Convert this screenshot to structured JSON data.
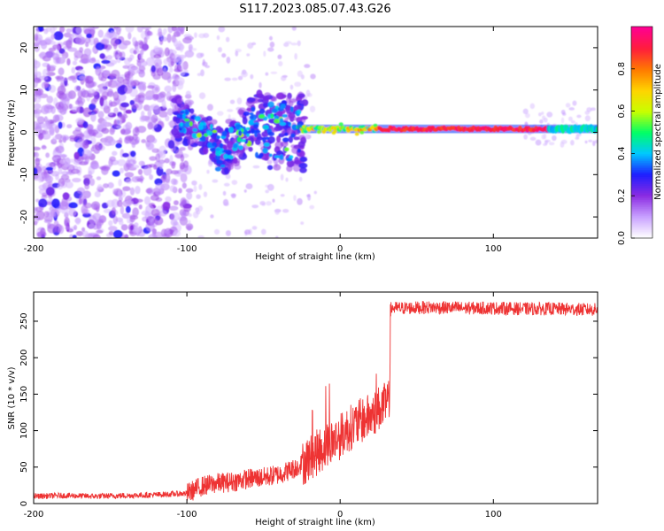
{
  "title": "S117.2023.085.07.43.G26",
  "chart_data": [
    {
      "type": "heatmap",
      "title": "S117.2023.085.07.43.G26",
      "xlabel": "Height of straight line (km)",
      "ylabel": "Frequency (Hz)",
      "xlim": [
        -200,
        168
      ],
      "ylim": [
        -25,
        25
      ],
      "x_ticks": [
        -200,
        -100,
        0,
        100
      ],
      "y_ticks": [
        20,
        10,
        0,
        -10,
        -20
      ],
      "grid": false,
      "colorbar": {
        "label": "Normalized spectral amplitude",
        "range": [
          0,
          1
        ],
        "ticks": [
          "0.0",
          "0.2",
          "0.4",
          "0.6",
          "0.8"
        ],
        "colormap": [
          "#ffffff",
          "#c8a0ff",
          "#8a2be2",
          "#1e1eff",
          "#00c8ff",
          "#00ff66",
          "#c8ff00",
          "#ffd400",
          "#ff7a00",
          "#ff1e3c",
          "#ff0090"
        ]
      },
      "regions": [
        {
          "name": "diffuse noise",
          "x": [
            -200,
            -100
          ],
          "freq": [
            -25,
            25
          ],
          "amplitude": 0.15
        },
        {
          "name": "transition",
          "x": [
            -100,
            -25
          ],
          "freq": [
            -15,
            10
          ],
          "amplitude": 0.45
        },
        {
          "name": "coherent line",
          "x": [
            -25,
            168
          ],
          "freq": [
            0,
            2
          ],
          "amplitude": 0.95
        }
      ]
    },
    {
      "type": "line",
      "xlabel": "Height of straight line (km)",
      "ylabel": "SNR (10 * v/v)",
      "xlim": [
        -200,
        168
      ],
      "ylim": [
        0,
        290
      ],
      "x_ticks": [
        -200,
        -100,
        0,
        100
      ],
      "y_ticks": [
        0,
        50,
        100,
        150,
        200,
        250
      ],
      "grid": false,
      "color": "#ee3333",
      "x": [
        -200,
        -180,
        -160,
        -140,
        -120,
        -100,
        -90,
        -80,
        -70,
        -60,
        -50,
        -40,
        -30,
        -25,
        -20,
        -15,
        -10,
        -5,
        0,
        5,
        10,
        15,
        20,
        25,
        30,
        32,
        33,
        40,
        60,
        80,
        100,
        120,
        140,
        160,
        168
      ],
      "y": [
        10,
        11,
        10,
        11,
        12,
        14,
        24,
        28,
        30,
        34,
        36,
        40,
        48,
        55,
        62,
        70,
        78,
        85,
        92,
        102,
        108,
        115,
        120,
        130,
        135,
        138,
        268,
        268,
        269,
        268,
        268,
        267,
        267,
        266,
        266
      ]
    }
  ]
}
